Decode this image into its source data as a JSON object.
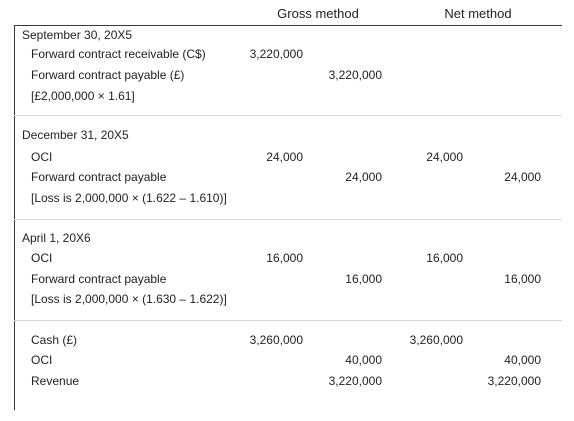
{
  "headers": {
    "gross": "Gross method",
    "net": "Net method"
  },
  "entries": [
    {
      "date": "September 30, 20X5",
      "lines": [
        {
          "account": "Forward contract receivable (C$)",
          "gross_dr": "3,220,000",
          "gross_cr": "",
          "net_dr": "",
          "net_cr": ""
        },
        {
          "account": "Forward contract payable (£)",
          "gross_dr": "",
          "gross_cr": "3,220,000",
          "net_dr": "",
          "net_cr": ""
        },
        {
          "account": "[£2,000,000 × 1.61]",
          "gross_dr": "",
          "gross_cr": "",
          "net_dr": "",
          "net_cr": ""
        }
      ]
    },
    {
      "date": "December 31, 20X5",
      "lines": [
        {
          "account": "OCI",
          "gross_dr": "24,000",
          "gross_cr": "",
          "net_dr": "24,000",
          "net_cr": ""
        },
        {
          "account": "Forward contract payable",
          "gross_dr": "",
          "gross_cr": "24,000",
          "net_dr": "",
          "net_cr": "24,000"
        },
        {
          "account": "[Loss is 2,000,000 × (1.622 – 1.610)]",
          "gross_dr": "",
          "gross_cr": "",
          "net_dr": "",
          "net_cr": ""
        }
      ]
    },
    {
      "date": "April 1, 20X6",
      "lines": [
        {
          "account": "OCI",
          "gross_dr": "16,000",
          "gross_cr": "",
          "net_dr": "16,000",
          "net_cr": ""
        },
        {
          "account": "Forward contract payable",
          "gross_dr": "",
          "gross_cr": "16,000",
          "net_dr": "",
          "net_cr": "16,000"
        },
        {
          "account": "[Loss is 2,000,000 × (1.630 – 1.622)]",
          "gross_dr": "",
          "gross_cr": "",
          "net_dr": "",
          "net_cr": ""
        }
      ]
    },
    {
      "date": "",
      "lines": [
        {
          "account": "Cash (£)",
          "gross_dr": "3,260,000",
          "gross_cr": "",
          "net_dr": "3,260,000",
          "net_cr": ""
        },
        {
          "account": "OCI",
          "gross_dr": "",
          "gross_cr": "40,000",
          "net_dr": "",
          "net_cr": "40,000"
        },
        {
          "account": "Revenue",
          "gross_dr": "",
          "gross_cr": "3,220,000",
          "net_dr": "",
          "net_cr": "3,220,000"
        }
      ]
    }
  ]
}
